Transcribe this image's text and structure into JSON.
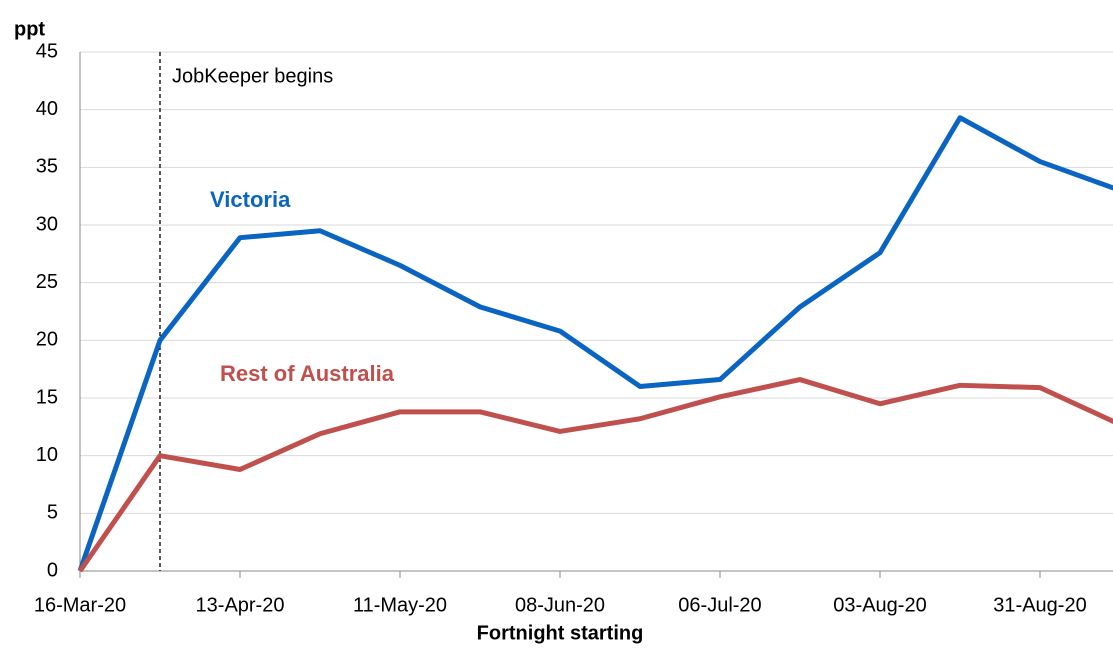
{
  "chart_data": {
    "type": "line",
    "y_label": "ppt",
    "x_label": "Fortnight starting",
    "annotation": "JobKeeper begins",
    "categories": [
      "16-Mar-20",
      null,
      "13-Apr-20",
      null,
      "11-May-20",
      null,
      "08-Jun-20",
      null,
      "06-Jul-20",
      null,
      "03-Aug-20",
      null,
      "31-Aug-20",
      null
    ],
    "series": [
      {
        "name": "Victoria",
        "color": "#0a64c2",
        "values": [
          0,
          20,
          28.9,
          29.5,
          26.5,
          22.9,
          20.8,
          16,
          16.6,
          22.9,
          27.6,
          39.3,
          35.5,
          33.0
        ]
      },
      {
        "name": "Rest of Australia",
        "color": "#c0504d",
        "values": [
          0,
          10,
          8.8,
          11.9,
          13.8,
          13.8,
          12.1,
          13.2,
          15.1,
          16.6,
          14.5,
          16.1,
          15.9,
          12.7
        ]
      }
    ],
    "ylim": [
      0,
      45
    ],
    "yticks": [
      0,
      5,
      10,
      15,
      20,
      25,
      30,
      35,
      40,
      45
    ],
    "grid": true
  }
}
